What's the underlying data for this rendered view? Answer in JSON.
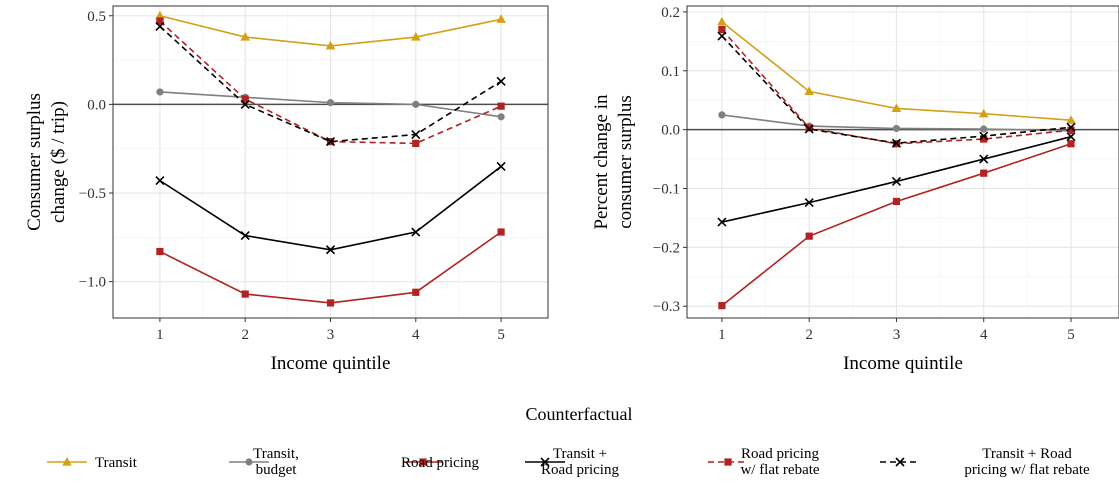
{
  "legend": {
    "title": "Counterfactual",
    "entries": [
      {
        "lines": [
          "Transit"
        ]
      },
      {
        "lines": [
          "Transit,",
          "budget"
        ]
      },
      {
        "lines": [
          "Road pricing"
        ]
      },
      {
        "lines": [
          "Transit +",
          "Road pricing"
        ]
      },
      {
        "lines": [
          "Road pricing",
          "w/ flat rebate"
        ]
      },
      {
        "lines": [
          "Transit + Road",
          "pricing w/ flat rebate"
        ]
      }
    ]
  },
  "styles": [
    {
      "color": "#D4A017",
      "dash": "",
      "marker": "triangle"
    },
    {
      "color": "#808080",
      "dash": "",
      "marker": "circle"
    },
    {
      "color": "#B22222",
      "dash": "",
      "marker": "square"
    },
    {
      "color": "#000000",
      "dash": "",
      "marker": "cross"
    },
    {
      "color": "#B22222",
      "dash": "6,4",
      "marker": "square"
    },
    {
      "color": "#000000",
      "dash": "6,4",
      "marker": "cross"
    }
  ],
  "chart_data": [
    {
      "type": "line",
      "xlabel": "Income quintile",
      "ylabel": [
        "Consumer surplus",
        "change ($ / trip)"
      ],
      "x": [
        1,
        2,
        3,
        4,
        5
      ],
      "xlim": [
        0.45,
        5.55
      ],
      "ylim": [
        -1.205,
        0.555
      ],
      "yticks": [
        0.5,
        0.0,
        -0.5,
        -1.0
      ],
      "ytick_labels": [
        "0.5",
        "0.0",
        "−0.5",
        "−1.0"
      ],
      "hline": 0,
      "series": [
        {
          "name": "Transit",
          "values": [
            0.5,
            0.38,
            0.33,
            0.38,
            0.48
          ]
        },
        {
          "name": "Transit, budget",
          "values": [
            0.07,
            0.04,
            0.01,
            0.0,
            -0.07
          ]
        },
        {
          "name": "Road pricing",
          "values": [
            -0.83,
            -1.07,
            -1.12,
            -1.06,
            -0.72
          ]
        },
        {
          "name": "Transit + Road pricing",
          "values": [
            -0.43,
            -0.74,
            -0.82,
            -0.72,
            -0.35
          ]
        },
        {
          "name": "Road pricing w/ flat rebate",
          "values": [
            0.47,
            0.03,
            -0.21,
            -0.22,
            -0.01
          ]
        },
        {
          "name": "Transit + Road pricing w/ flat rebate",
          "values": [
            0.44,
            0.0,
            -0.21,
            -0.17,
            0.13
          ]
        }
      ]
    },
    {
      "type": "line",
      "xlabel": "Income quintile",
      "ylabel": [
        "Percent change in",
        "consumer surplus"
      ],
      "x": [
        1,
        2,
        3,
        4,
        5
      ],
      "xlim": [
        0.6,
        5.55
      ],
      "ylim": [
        -0.32,
        0.21
      ],
      "yticks": [
        0.2,
        0.1,
        0.0,
        -0.1,
        -0.2,
        -0.3
      ],
      "ytick_labels": [
        "0.2",
        "0.1",
        "0.0",
        "−0.1",
        "−0.2",
        "−0.3"
      ],
      "hline": 0,
      "series": [
        {
          "name": "Transit",
          "values": [
            0.183,
            0.065,
            0.036,
            0.027,
            0.016
          ]
        },
        {
          "name": "Transit, budget",
          "values": [
            0.025,
            0.006,
            0.002,
            0.001,
            -0.002
          ]
        },
        {
          "name": "Road pricing",
          "values": [
            -0.299,
            -0.181,
            -0.122,
            -0.074,
            -0.024
          ]
        },
        {
          "name": "Transit + Road pricing",
          "values": [
            -0.157,
            -0.124,
            -0.088,
            -0.05,
            -0.012
          ]
        },
        {
          "name": "Road pricing w/ flat rebate",
          "values": [
            0.17,
            0.003,
            -0.024,
            -0.016,
            -0.001
          ]
        },
        {
          "name": "Transit + Road pricing w/ flat rebate",
          "values": [
            0.159,
            0.001,
            -0.023,
            -0.011,
            0.004
          ]
        }
      ]
    }
  ]
}
